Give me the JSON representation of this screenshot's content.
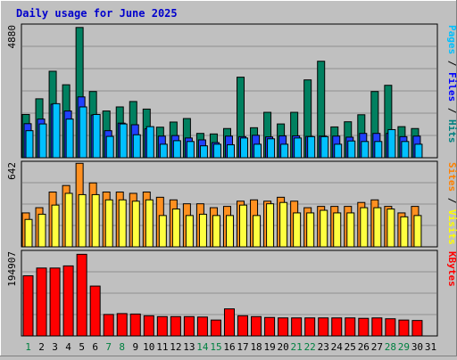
{
  "chart_data": {
    "title": "Daily usage for June 2025",
    "type": "bar",
    "days": [
      "1",
      "2",
      "3",
      "4",
      "5",
      "6",
      "7",
      "8",
      "9",
      "10",
      "11",
      "12",
      "13",
      "14",
      "15",
      "16",
      "17",
      "18",
      "19",
      "20",
      "21",
      "22",
      "23",
      "24",
      "25",
      "26",
      "27",
      "28",
      "29",
      "30",
      "31"
    ],
    "weekend_days": [
      "1",
      "7",
      "8",
      "14",
      "15",
      "21",
      "22",
      "28",
      "29"
    ],
    "panels": [
      {
        "name": "pages-files-hits",
        "max_label": "4880",
        "ylim": [
          0,
          4880
        ],
        "legend": [
          {
            "text": "Pages",
            "color": "#00c0ff"
          },
          {
            "text": " / ",
            "color": "#000000"
          },
          {
            "text": "Files",
            "color": "#0000ff"
          },
          {
            "text": " / ",
            "color": "#000000"
          },
          {
            "text": "Hits",
            "color": "#008080"
          }
        ],
        "series": [
          {
            "name": "Hits",
            "color": "#008060",
            "values": [
              1600,
              2180,
              3200,
              2700,
              4820,
              2450,
              1730,
              1880,
              2080,
              1800,
              1130,
              1320,
              1450,
              900,
              880,
              1080,
              2980,
              1110,
              1680,
              1250,
              1680,
              2880,
              3570,
              1140,
              1330,
              1590,
              2450,
              2680,
              1150,
              1080,
              0
            ]
          },
          {
            "name": "Files",
            "color": "#2040ff",
            "values": [
              1260,
              1430,
              1980,
              1730,
              2250,
              1580,
              1000,
              1280,
              1220,
              1070,
              800,
              820,
              730,
              660,
              560,
              800,
              780,
              830,
              770,
              810,
              810,
              790,
              800,
              800,
              760,
              900,
              900,
              900,
              780,
              800,
              0
            ]
          },
          {
            "name": "Pages",
            "color": "#00c0ff",
            "values": [
              1000,
              1250,
              2000,
              1430,
              1880,
              1600,
              790,
              1250,
              850,
              1150,
              500,
              630,
              600,
              440,
              500,
              480,
              730,
              500,
              700,
              500,
              730,
              780,
              780,
              500,
              620,
              600,
              600,
              1040,
              600,
              500,
              0
            ]
          }
        ]
      },
      {
        "name": "sites-visits",
        "max_label": "642",
        "ylim": [
          0,
          642
        ],
        "legend": [
          {
            "text": "Sites",
            "color": "#ff8000"
          },
          {
            "text": " / ",
            "color": "#000000"
          },
          {
            "text": "Visits",
            "color": "#ffff00"
          }
        ],
        "series": [
          {
            "name": "Visits",
            "color": "#ff9020",
            "values": [
              260,
              300,
              420,
              470,
              640,
              490,
              420,
              420,
              410,
              420,
              380,
              360,
              330,
              330,
              300,
              310,
              350,
              360,
              350,
              380,
              350,
              300,
              310,
              310,
              310,
              340,
              360,
              310,
              260,
              310,
              0
            ]
          },
          {
            "name": "Sites",
            "color": "#ffff40",
            "values": [
              210,
              250,
              320,
              410,
              400,
              400,
              360,
              360,
              350,
              360,
              240,
              290,
              240,
              250,
              240,
              240,
              320,
              240,
              330,
              340,
              260,
              260,
              280,
              260,
              260,
              300,
              300,
              290,
              230,
              240,
              0
            ]
          }
        ]
      },
      {
        "name": "kbytes",
        "max_label": "194907",
        "ylim": [
          0,
          194907
        ],
        "legend": [
          {
            "text": "KBytes",
            "color": "#ff0000"
          }
        ],
        "series": [
          {
            "name": "KBytes",
            "color": "#ff0000",
            "values": [
              140000,
              158000,
              158000,
              163000,
              190000,
              116000,
              50000,
              52000,
              51000,
              47000,
              45000,
              45000,
              45000,
              44000,
              37000,
              63000,
              47000,
              45000,
              43000,
              42000,
              42000,
              42000,
              42000,
              42000,
              42000,
              41000,
              42000,
              40000,
              37000,
              36000,
              0
            ]
          }
        ]
      }
    ]
  }
}
